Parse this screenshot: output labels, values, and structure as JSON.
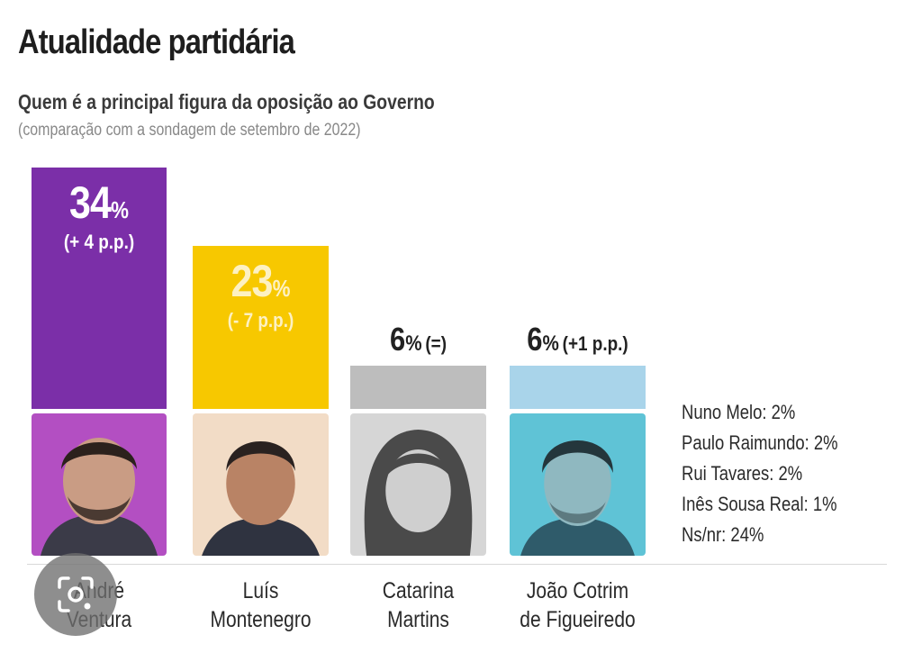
{
  "title": "Atualidade partidária",
  "subtitle": "Quem é a principal figura da oposição ao Governo",
  "note": "(comparação com a sondagem de setembro de 2022)",
  "colors": {
    "ventura": "#7b2fa8",
    "ventura_photo": "#b34fc2",
    "montenegro": "#f7c800",
    "montenegro_photo": "#f2dcc6",
    "martins": "#bdbdbd",
    "martins_photo": "#d6d6d6",
    "cotrim": "#a9d4ea",
    "cotrim_photo": "#5fc3d6"
  },
  "chart_data": {
    "type": "bar",
    "categories": [
      "André Ventura",
      "Luís Montenegro",
      "Catarina Martins",
      "João Cotrim de Figueiredo"
    ],
    "values": [
      34,
      23,
      6,
      6
    ],
    "changes": [
      "(+ 4 p.p.)",
      "(- 7 p.p.)",
      "(=)",
      "(+1 p.p.)"
    ],
    "unit": "%",
    "ylim": [
      0,
      34
    ],
    "labels": [
      {
        "num": "34",
        "pct": "%",
        "chg": "(+ 4 p.p.)"
      },
      {
        "num": "23",
        "pct": "%",
        "chg": "(- 7 p.p.)"
      },
      {
        "num": "6",
        "pct": "%",
        "chg": "(=)"
      },
      {
        "num": "6",
        "pct": "%",
        "chg": "(+1 p.p.)"
      }
    ],
    "names": [
      {
        "line1": "André",
        "line2": "Ventura"
      },
      {
        "line1": "Luís",
        "line2": "Montenegro"
      },
      {
        "line1": "Catarina",
        "line2": "Martins"
      },
      {
        "line1": "João Cotrim",
        "line2": "de Figueiredo"
      }
    ],
    "others": [
      "Nuno Melo: 2%",
      "Paulo Raimundo: 2%",
      "Rui Tavares: 2%",
      "Inês Sousa Real: 1%",
      "Ns/nr: 24%"
    ]
  },
  "icons": {
    "lens": "google-lens-icon"
  }
}
